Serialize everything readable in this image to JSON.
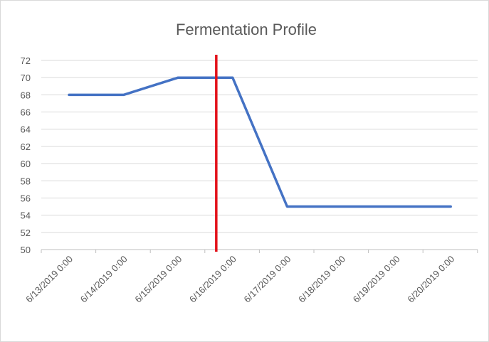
{
  "chart_data": {
    "type": "line",
    "title": "Fermentation Profile",
    "xlabel": "",
    "ylabel": "",
    "categories": [
      "6/13/2019 0:00",
      "6/14/2019 0:00",
      "6/15/2019 0:00",
      "6/16/2019 0:00",
      "6/17/2019 0:00",
      "6/18/2019 0:00",
      "6/19/2019 0:00",
      "6/20/2019 0:00"
    ],
    "x": [
      0,
      1,
      2,
      3,
      4,
      5,
      6,
      7
    ],
    "series": [
      {
        "values": [
          68,
          68,
          70,
          70,
          55,
          55,
          55,
          55
        ],
        "color": "#4472c4"
      }
    ],
    "ylim": [
      50,
      72
    ],
    "yticks": [
      50,
      52,
      54,
      56,
      58,
      60,
      62,
      64,
      66,
      68,
      70,
      72
    ],
    "grid": true,
    "legend": "none",
    "marker_line": {
      "x": 2.7,
      "color": "#e3121b"
    }
  }
}
